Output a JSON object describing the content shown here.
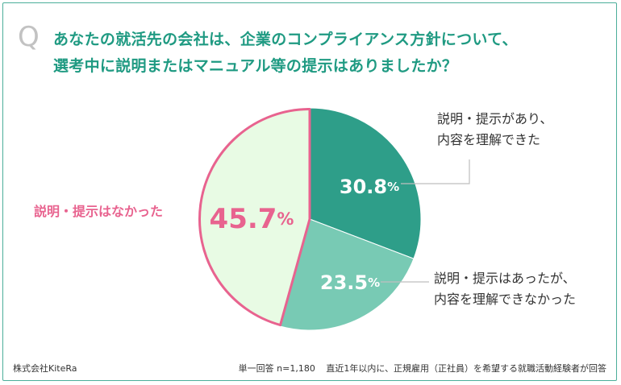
{
  "header": {
    "q_mark": "Q",
    "title_line1": "あなたの就活先の会社は、企業のコンプライアンス方針について、",
    "title_line2": "選考中に説明またはマニュアル等の提示はありましたか？"
  },
  "chart_data": {
    "type": "pie",
    "title": "",
    "unit": "%",
    "slices": [
      {
        "value": 30.8,
        "label_lines": [
          "説明・提示があり、",
          "内容を理解できた"
        ],
        "color": "#2e9e89",
        "label_color": "#333333"
      },
      {
        "value": 23.5,
        "label_lines": [
          "説明・提示はあったが、",
          "内容を理解できなかった"
        ],
        "color": "#78cab4",
        "label_color": "#333333"
      },
      {
        "value": 45.7,
        "label_lines": [
          "説明・提示はなかった"
        ],
        "color": "#e8fbe4",
        "label_color": "#e8638f",
        "border_color": "#e8638f"
      }
    ]
  },
  "footer": {
    "source": "株式会社KiteRa",
    "sample": "単一回答 n=1,180",
    "note": "直近1年以内に、正規雇用（正社員）を希望する就職活動経験者が回答"
  }
}
